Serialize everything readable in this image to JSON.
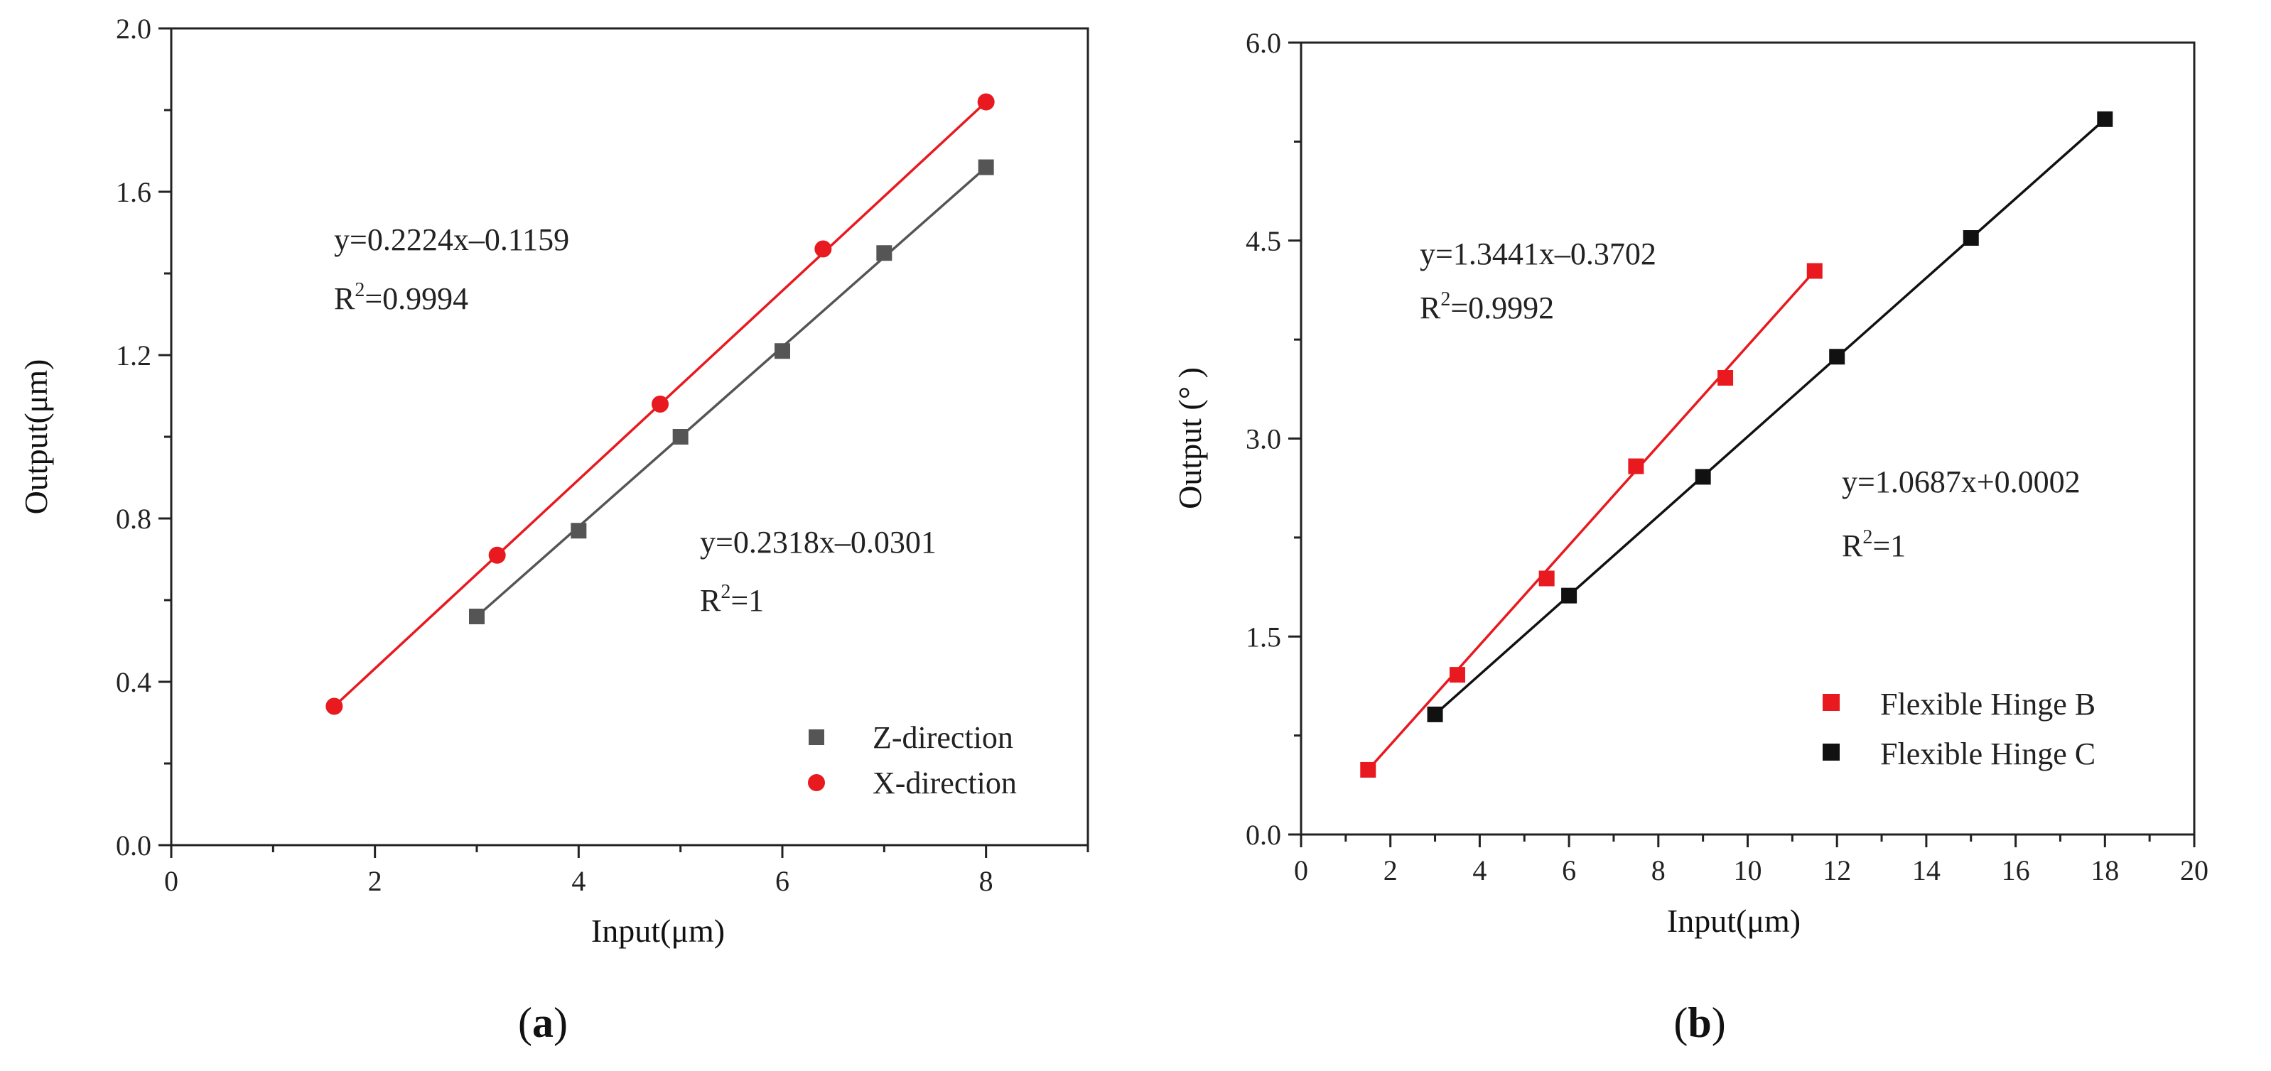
{
  "colors": {
    "red": "#e8191f",
    "dark": "#555555",
    "black": "#111111"
  },
  "chart_data": [
    {
      "type": "scatter",
      "id": "a",
      "caption_open": "(",
      "caption_letter": "a",
      "caption_close": ")",
      "xlabel": "Input(μm)",
      "ylabel": "Output(μm)",
      "xlim": [
        0,
        9
      ],
      "ylim": [
        0.0,
        2.0
      ],
      "xticks": [
        0,
        2,
        4,
        6,
        8
      ],
      "xtick_labels": [
        "0",
        "2",
        "4",
        "6",
        "8"
      ],
      "yticks": [
        0.0,
        0.4,
        0.8,
        1.2,
        1.6,
        2.0
      ],
      "ytick_labels": [
        "0.0",
        "0.4",
        "0.8",
        "1.2",
        "1.6",
        "2.0"
      ],
      "series": [
        {
          "name": "Z-direction",
          "marker": "square",
          "color": "#555555",
          "x": [
            3,
            4,
            5,
            6,
            7,
            8
          ],
          "y": [
            0.56,
            0.77,
            1.0,
            1.21,
            1.45,
            1.66
          ],
          "fit": {
            "x": [
              3,
              8
            ],
            "y": [
              0.56,
              1.66
            ]
          }
        },
        {
          "name": "X-direction",
          "marker": "circle",
          "color": "#e8191f",
          "x": [
            1.6,
            3.2,
            4.8,
            6.4,
            8.0
          ],
          "y": [
            0.34,
            0.71,
            1.08,
            1.46,
            1.82
          ],
          "fit": {
            "x": [
              1.6,
              8.0
            ],
            "y": [
              0.34,
              1.82
            ]
          }
        }
      ],
      "annotations": [
        {
          "id": "eq1",
          "line1": "y=0.2224x–0.1159",
          "r2_prefix": "R",
          "r2_sup": "2",
          "r2_value": "=0.9994"
        },
        {
          "id": "eq2",
          "line1": "y=0.2318x–0.0301",
          "r2_prefix": "R",
          "r2_sup": "2",
          "r2_value": "=1"
        }
      ],
      "legend_position": "bottom-right"
    },
    {
      "type": "scatter",
      "id": "b",
      "caption_open": "(",
      "caption_letter": "b",
      "caption_close": ")",
      "xlabel": "Input(μm)",
      "ylabel": "Output (° )",
      "xlim": [
        0,
        20
      ],
      "ylim": [
        0.0,
        6.0
      ],
      "xticks": [
        0,
        2,
        4,
        6,
        8,
        10,
        12,
        14,
        16,
        18,
        20
      ],
      "xtick_labels": [
        "0",
        "2",
        "4",
        "6",
        "8",
        "10",
        "12",
        "14",
        "16",
        "18",
        "20"
      ],
      "yticks": [
        0.0,
        1.5,
        3.0,
        4.5,
        6.0
      ],
      "ytick_labels": [
        "0.0",
        "1.5",
        "3.0",
        "4.5",
        "6.0"
      ],
      "series": [
        {
          "name": "Flexible Hinge B",
          "marker": "square",
          "color": "#e8191f",
          "x": [
            1.5,
            3.5,
            5.5,
            7.5,
            9.5,
            11.5
          ],
          "y": [
            0.49,
            1.21,
            1.94,
            2.79,
            3.46,
            4.27
          ],
          "fit": {
            "x": [
              1.5,
              11.5
            ],
            "y": [
              0.49,
              4.27
            ]
          }
        },
        {
          "name": "Flexible Hinge C",
          "marker": "square",
          "color": "#111111",
          "x": [
            3,
            6,
            9,
            12,
            15,
            18
          ],
          "y": [
            0.91,
            1.81,
            2.71,
            3.62,
            4.52,
            5.42
          ],
          "fit": {
            "x": [
              3,
              18
            ],
            "y": [
              0.91,
              5.42
            ]
          }
        }
      ],
      "annotations": [
        {
          "id": "eq1",
          "line1": "y=1.3441x–0.3702",
          "r2_prefix": "R",
          "r2_sup": "2",
          "r2_value": "=0.9992"
        },
        {
          "id": "eq2",
          "line1": "y=1.0687x+0.0002",
          "r2_prefix": "R",
          "r2_sup": "2",
          "r2_value": "=1"
        }
      ],
      "legend_position": "bottom-right"
    }
  ]
}
